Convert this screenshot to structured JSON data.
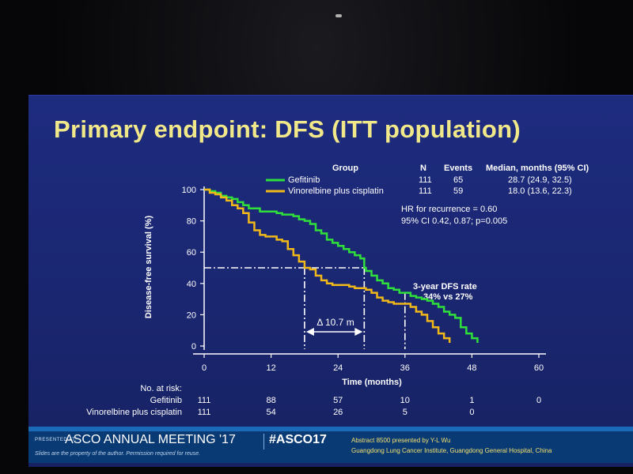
{
  "slide": {
    "title": "Primary endpoint: DFS (ITT population)"
  },
  "legend_table": {
    "headers": {
      "group": "Group",
      "n": "N",
      "events": "Events",
      "median": "Median, months (95% CI)"
    },
    "rows": [
      {
        "group": "Gefitinib",
        "n": "111",
        "events": "65",
        "median": "28.7 (24.9, 32.5)",
        "color": "#2fe03a"
      },
      {
        "group": "Vinorelbine plus cisplatin",
        "n": "111",
        "events": "59",
        "median": "18.0 (13.6, 22.3)",
        "color": "#f0b818"
      }
    ]
  },
  "annotations": {
    "hr_line1": "HR for recurrence = 0.60",
    "hr_line2": "95% CI 0.42, 0.87; p=0.005",
    "dfs_line1": "3-year DFS rate",
    "dfs_line2": "34% vs 27%",
    "delta": "Δ 10.7 m"
  },
  "risk_table": {
    "label": "No. at risk:",
    "rows": [
      {
        "name": "Gefitinib",
        "values": [
          "111",
          "88",
          "57",
          "10",
          "1",
          "0"
        ]
      },
      {
        "name": "Vinorelbine plus cisplatin",
        "values": [
          "111",
          "54",
          "26",
          "5",
          "0"
        ]
      }
    ]
  },
  "footer": {
    "presented_at": "PRESENTED AT:",
    "meeting": "ASCO ANNUAL MEETING '17",
    "hashtag": "#ASCO17",
    "slides_note": "Slides are the property of the author. Permission required for reuse.",
    "abstract_line1": "Abstract 8500 presented by Y-L Wu",
    "abstract_line2": "Guangdong Lung Cancer Institute, Guangdong General Hospital, China"
  },
  "chart_data": {
    "type": "line",
    "xlabel": "Time (months)",
    "ylabel": "Disease-free survival (%)",
    "xlim": [
      0,
      60
    ],
    "ylim": [
      0,
      100
    ],
    "xticks": [
      0,
      12,
      24,
      36,
      48,
      60
    ],
    "yticks": [
      0,
      20,
      40,
      60,
      80,
      100
    ],
    "reference_lines": {
      "median_y": 50,
      "median_x_vinorelbine": 18.0,
      "median_x_gefitinib": 28.7,
      "three_year_x": 36,
      "three_year_dfs": [
        34,
        27
      ]
    },
    "series": [
      {
        "name": "Gefitinib",
        "color": "#2fe03a",
        "points": [
          [
            0,
            100
          ],
          [
            1,
            99
          ],
          [
            2,
            98
          ],
          [
            3,
            96
          ],
          [
            4,
            95
          ],
          [
            5,
            94
          ],
          [
            6,
            92
          ],
          [
            7,
            90
          ],
          [
            8,
            88
          ],
          [
            9,
            88
          ],
          [
            10,
            86
          ],
          [
            11,
            86
          ],
          [
            12,
            86
          ],
          [
            13,
            85
          ],
          [
            14,
            84
          ],
          [
            15,
            84
          ],
          [
            16,
            83
          ],
          [
            17,
            81
          ],
          [
            18,
            80
          ],
          [
            19,
            78
          ],
          [
            20,
            74
          ],
          [
            21,
            72
          ],
          [
            22,
            68
          ],
          [
            23,
            66
          ],
          [
            24,
            64
          ],
          [
            25,
            62
          ],
          [
            26,
            60
          ],
          [
            27,
            58
          ],
          [
            28,
            56
          ],
          [
            28.7,
            50
          ],
          [
            29,
            48
          ],
          [
            30,
            45
          ],
          [
            31,
            42
          ],
          [
            32,
            40
          ],
          [
            33,
            37
          ],
          [
            34,
            36
          ],
          [
            35,
            34
          ],
          [
            36,
            34
          ],
          [
            37,
            32
          ],
          [
            38,
            31
          ],
          [
            39,
            30
          ],
          [
            40,
            29
          ],
          [
            41,
            27
          ],
          [
            42,
            25
          ],
          [
            43,
            22
          ],
          [
            44,
            20
          ],
          [
            45,
            18
          ],
          [
            46,
            12
          ],
          [
            47,
            8
          ],
          [
            48,
            5
          ],
          [
            49,
            2
          ]
        ]
      },
      {
        "name": "Vinorelbine plus cisplatin",
        "color": "#f0b818",
        "points": [
          [
            0,
            100
          ],
          [
            1,
            98
          ],
          [
            2,
            97
          ],
          [
            3,
            95
          ],
          [
            4,
            93
          ],
          [
            5,
            90
          ],
          [
            6,
            88
          ],
          [
            7,
            85
          ],
          [
            8,
            79
          ],
          [
            9,
            74
          ],
          [
            10,
            71
          ],
          [
            11,
            70
          ],
          [
            12,
            70
          ],
          [
            13,
            68
          ],
          [
            14,
            67
          ],
          [
            15,
            62
          ],
          [
            16,
            58
          ],
          [
            17,
            54
          ],
          [
            18,
            50
          ],
          [
            19,
            49
          ],
          [
            20,
            45
          ],
          [
            21,
            42
          ],
          [
            22,
            40
          ],
          [
            23,
            39
          ],
          [
            24,
            39
          ],
          [
            25,
            39
          ],
          [
            26,
            38
          ],
          [
            27,
            37
          ],
          [
            28,
            37
          ],
          [
            29,
            36
          ],
          [
            30,
            34
          ],
          [
            31,
            31
          ],
          [
            32,
            29
          ],
          [
            33,
            28
          ],
          [
            34,
            27
          ],
          [
            35,
            27
          ],
          [
            36,
            27
          ],
          [
            37,
            25
          ],
          [
            38,
            22
          ],
          [
            39,
            20
          ],
          [
            40,
            16
          ],
          [
            41,
            12
          ],
          [
            42,
            8
          ],
          [
            43,
            5
          ],
          [
            44,
            2
          ]
        ]
      }
    ]
  }
}
